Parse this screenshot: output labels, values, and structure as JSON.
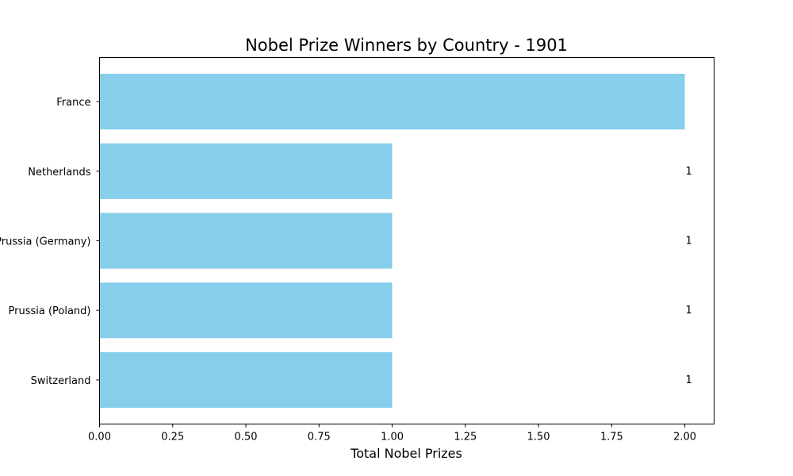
{
  "chart_data": {
    "type": "bar",
    "orientation": "horizontal",
    "title": "Nobel Prize Winners by Country - 1901",
    "xlabel": "Total Nobel Prizes",
    "ylabel": "",
    "categories": [
      "France",
      "Netherlands",
      "Prussia (Germany)",
      "Prussia (Poland)",
      "Switzerland"
    ],
    "values": [
      2,
      1,
      1,
      1,
      1
    ],
    "data_labels": [
      "",
      "1",
      "1",
      "1",
      "1"
    ],
    "xlim": [
      0,
      2.1
    ],
    "xticks": [
      "0.00",
      "0.25",
      "0.50",
      "0.75",
      "1.00",
      "1.25",
      "1.50",
      "1.75",
      "2.00"
    ],
    "bar_color": "#87ceeb",
    "grid": false,
    "legend": "none"
  }
}
